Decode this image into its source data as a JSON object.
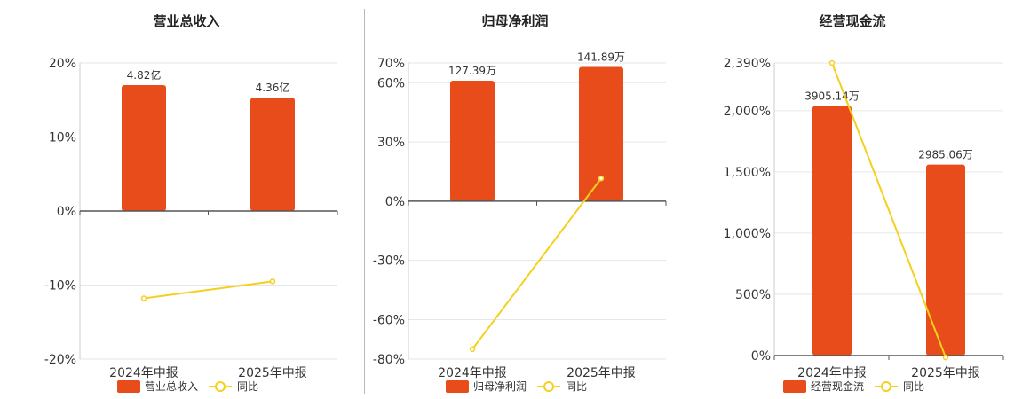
{
  "legend": {
    "yoy_label": "同比"
  },
  "colors": {
    "bar": "#e84c1b",
    "line": "#f5d01c",
    "grid": "#e6e6e6",
    "axis": "#555555",
    "text": "#333333"
  },
  "chart_data": [
    {
      "type": "bar",
      "title": "营业总收入",
      "categories": [
        "2024年中报",
        "2025年中报"
      ],
      "series": [
        {
          "name": "营业总收入",
          "kind": "bar",
          "values": [
            17.0,
            15.3
          ],
          "labels": [
            "4.82亿",
            "4.36亿"
          ]
        },
        {
          "name": "同比",
          "kind": "line",
          "values": [
            -11.8,
            -9.5
          ]
        }
      ],
      "yticks": [
        20,
        10,
        0,
        -10,
        -20
      ],
      "ytick_labels": [
        "20%",
        "10%",
        "0%",
        "-10%",
        "-20%"
      ],
      "ylim": [
        -20,
        20
      ]
    },
    {
      "type": "bar",
      "title": "归母净利润",
      "categories": [
        "2024年中报",
        "2025年中报"
      ],
      "series": [
        {
          "name": "归母净利润",
          "kind": "bar",
          "values": [
            61.0,
            68.0
          ],
          "labels": [
            "127.39万",
            "141.89万"
          ]
        },
        {
          "name": "同比",
          "kind": "line",
          "values": [
            -75.0,
            11.5
          ]
        }
      ],
      "yticks": [
        70,
        60,
        30,
        0,
        -30,
        -60,
        -80
      ],
      "ytick_labels": [
        "70%",
        "60%",
        "30%",
        "0%",
        "-30%",
        "-60%",
        "-80%"
      ],
      "ylim": [
        -80,
        70
      ]
    },
    {
      "type": "bar",
      "title": "经营现金流",
      "categories": [
        "2024年中报",
        "2025年中报"
      ],
      "series": [
        {
          "name": "经营现金流",
          "kind": "bar",
          "values": [
            2040,
            1560
          ],
          "labels": [
            "3905.14万",
            "2985.06万"
          ]
        },
        {
          "name": "同比",
          "kind": "line",
          "values": [
            2390,
            -15
          ]
        }
      ],
      "yticks": [
        2390,
        2000,
        1500,
        1000,
        500,
        0
      ],
      "ytick_labels": [
        "2,390%",
        "2,000%",
        "1,500%",
        "1,000%",
        "500%",
        "0%"
      ],
      "ylim": [
        0,
        2390
      ]
    }
  ]
}
